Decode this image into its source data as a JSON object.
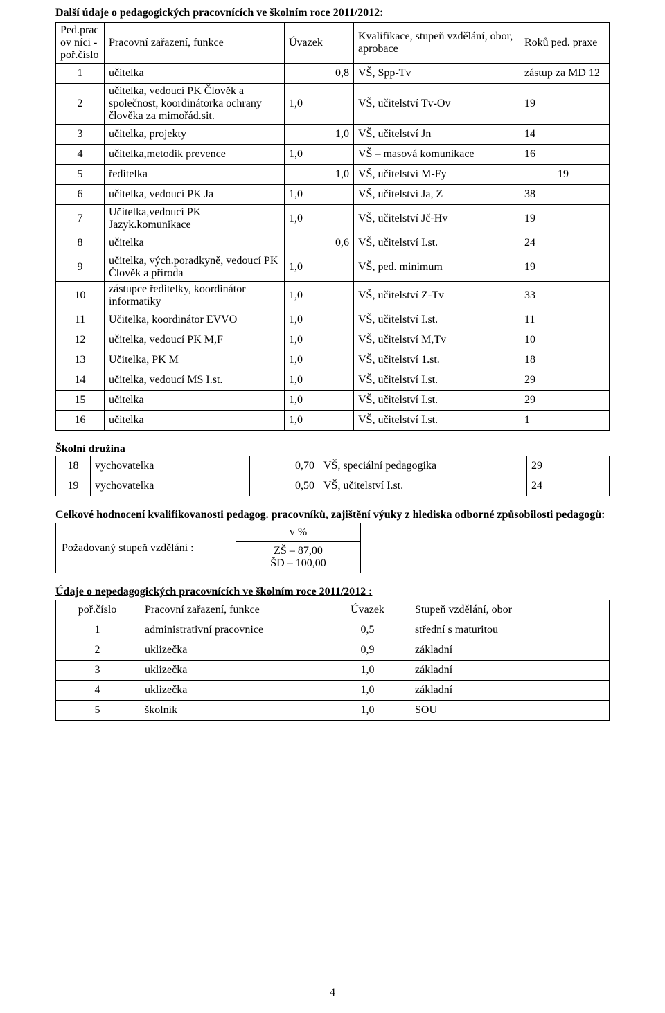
{
  "heading1": "Další údaje o pedagogických pracovnících ve školním roce 2011/2012:",
  "table1": {
    "h1": "Ped.pracov níci - poř.číslo",
    "h2": "Pracovní zařazení, funkce",
    "h3": "Úvazek",
    "h4": "Kvalifikace, stupeň vzdělání, obor, aprobace",
    "h5": "Roků ped. praxe",
    "r1": {
      "n": "1",
      "f": "učitelka",
      "u": "0,8",
      "k": "VŠ, Spp-Tv",
      "p": "zástup za MD 12"
    },
    "r2": {
      "n": "2",
      "f": "učitelka, vedoucí PK Člověk a společnost, koordinátorka ochrany člověka za mimořád.sit.",
      "u": "1,0",
      "k": "VŠ, učitelství Tv-Ov",
      "p": "19"
    },
    "r3": {
      "n": "3",
      "f": "učitelka, projekty",
      "u": "1,0",
      "k": "VŠ, učitelství Jn",
      "p": "14"
    },
    "r4": {
      "n": "4",
      "f": "učitelka,metodik prevence",
      "u": "1,0",
      "k": "VŠ – masová komunikace",
      "p": " 16"
    },
    "r5": {
      "n": "5",
      "f": "ředitelka",
      "u": "1,0",
      "k": "VŠ, učitelství M-Fy",
      "p": "            19"
    },
    "r6": {
      "n": "6",
      "f": "učitelka, vedoucí PK Ja",
      "u": "1,0",
      "k": "VŠ, učitelství Ja, Z",
      "p": "38"
    },
    "r7": {
      "n": "7",
      "f": "Učitelka,vedoucí PK Jazyk.komunikace",
      "u": "1,0",
      "k": "VŠ, učitelství Jč-Hv",
      "p": "19"
    },
    "r8": {
      "n": "8",
      "f": "učitelka",
      "u": "0,6",
      "k": "VŠ, učitelství I.st.",
      "p": "24"
    },
    "r9": {
      "n": "9",
      "f": "učitelka, vých.poradkyně, vedoucí PK Člověk a příroda",
      "u": "1,0",
      "k": "VŠ, ped. minimum",
      "p": "19"
    },
    "r10": {
      "n": "10",
      "f": "zástupce ředitelky, koordinátor informatiky",
      "u": "1,0",
      "k": "VŠ, učitelství Z-Tv",
      "p": "33"
    },
    "r11": {
      "n": "11",
      "f": "Učitelka, koordinátor EVVO",
      "u": "1,0",
      "k": "VŠ, učitelství I.st.",
      "p": "11"
    },
    "r12": {
      "n": "12",
      "f": "učitelka, vedoucí PK M,F",
      "u": "1,0",
      "k": "VŠ, učitelství M,Tv",
      "p": "10"
    },
    "r13": {
      "n": "13",
      "f": "Učitelka, PK M",
      "u": "1,0",
      "k": "VŠ, učitelství 1.st.",
      "p": "18"
    },
    "r14": {
      "n": "14",
      "f": "učitelka, vedoucí MS I.st.",
      "u": "1,0",
      "k": "VŠ, učitelství I.st.",
      "p": "29"
    },
    "r15": {
      "n": "15",
      "f": "učitelka",
      "u": "1,0",
      "k": "VŠ, učitelství I.st.",
      "p": "29"
    },
    "r16": {
      "n": "16",
      "f": "učitelka",
      "u": "1,0",
      "k": "VŠ, učitelství I.st.",
      "p": "1"
    }
  },
  "heading2": "Školní družina",
  "table2": {
    "r18": {
      "n": "18",
      "f": "vychovatelka",
      "u": "0,70",
      "k": "VŠ, speciální pedagogika",
      "p": "29"
    },
    "r19": {
      "n": "19",
      "f": "vychovatelka",
      "u": "0,50",
      "k": "VŠ, učitelství I.st.",
      "p": "24"
    }
  },
  "para1_lead": "Celkové hodnocení kvalifikovanosti pedagog. pracovníků, zajištění výuky z hlediska odborné způsobilosti pedagogů:",
  "percent": {
    "label": "Požadovaný stupeň vzdělání :",
    "header": "v %",
    "l1": "ZŠ –  87,00",
    "l2": "ŠD – 100,00"
  },
  "heading3": "Údaje o nepedagogických pracovnících ve školním roce 2011/2012 :",
  "table3": {
    "h1": "poř.číslo",
    "h2": "Pracovní zařazení, funkce",
    "h3": "Úvazek",
    "h4": "Stupeň vzdělání, obor",
    "r1": {
      "n": "1",
      "f": "administrativní pracovnice",
      "u": "0,5",
      "k": "střední s maturitou"
    },
    "r2": {
      "n": "2",
      "f": "uklizečka",
      "u": "0,9",
      "k": "základní"
    },
    "r3": {
      "n": "3",
      "f": "uklizečka",
      "u": "1,0",
      "k": "základní"
    },
    "r4": {
      "n": "4",
      "f": "uklizečka",
      "u": "1,0",
      "k": "základní"
    },
    "r5": {
      "n": "5",
      "f": "školník",
      "u": "1,0",
      "k": "SOU"
    }
  },
  "page_number": "4"
}
